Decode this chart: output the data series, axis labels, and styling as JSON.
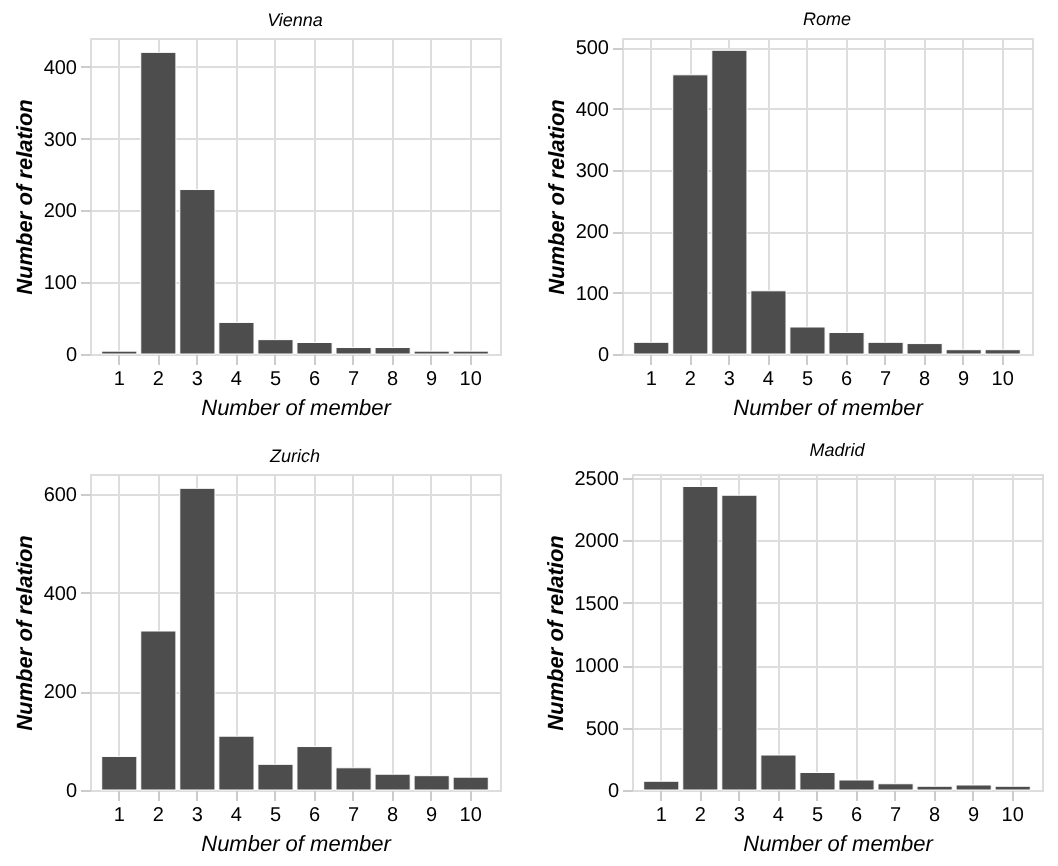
{
  "chart_data": [
    {
      "type": "bar",
      "title": "Vienna",
      "xlabel": "Number of member",
      "ylabel": "Number of relation",
      "categories": [
        "1",
        "2",
        "3",
        "4",
        "5",
        "6",
        "7",
        "8",
        "9",
        "10"
      ],
      "color": "#4d4d4d",
      "values": [
        4,
        420,
        229,
        44,
        20,
        16,
        9,
        9,
        4,
        4
      ],
      "ylim": [
        0,
        440
      ],
      "yticks": [
        0,
        100,
        200,
        300,
        400
      ],
      "grid": true
    },
    {
      "type": "bar",
      "title": "Rome",
      "xlabel": "Number of member",
      "ylabel": "Number of relation",
      "categories": [
        "1",
        "2",
        "3",
        "4",
        "5",
        "6",
        "7",
        "8",
        "9",
        "10"
      ],
      "color": "#4d4d4d",
      "values": [
        19,
        455,
        495,
        103,
        44,
        35,
        19,
        17,
        7,
        7
      ],
      "ylim": [
        0,
        515
      ],
      "yticks": [
        0,
        100,
        200,
        300,
        400,
        500
      ],
      "grid": true
    },
    {
      "type": "bar",
      "title": "Zurich",
      "xlabel": "Number of member",
      "ylabel": "Number of relation",
      "categories": [
        "1",
        "2",
        "3",
        "4",
        "5",
        "6",
        "7",
        "8",
        "9",
        "10"
      ],
      "color": "#4d4d4d",
      "values": [
        68,
        322,
        611,
        109,
        52,
        88,
        45,
        32,
        29,
        26
      ],
      "ylim": [
        0,
        640
      ],
      "yticks": [
        0,
        200,
        400,
        600
      ],
      "grid": true
    },
    {
      "type": "bar",
      "title": "Madrid",
      "xlabel": "Number of member",
      "ylabel": "Number of relation",
      "categories": [
        "1",
        "2",
        "3",
        "4",
        "5",
        "6",
        "7",
        "8",
        "9",
        "10"
      ],
      "color": "#4d4d4d",
      "values": [
        70,
        2430,
        2360,
        280,
        140,
        80,
        50,
        30,
        40,
        30
      ],
      "ylim": [
        0,
        2530
      ],
      "yticks": [
        0,
        500,
        1000,
        1500,
        2000,
        2500
      ],
      "grid": true
    }
  ]
}
